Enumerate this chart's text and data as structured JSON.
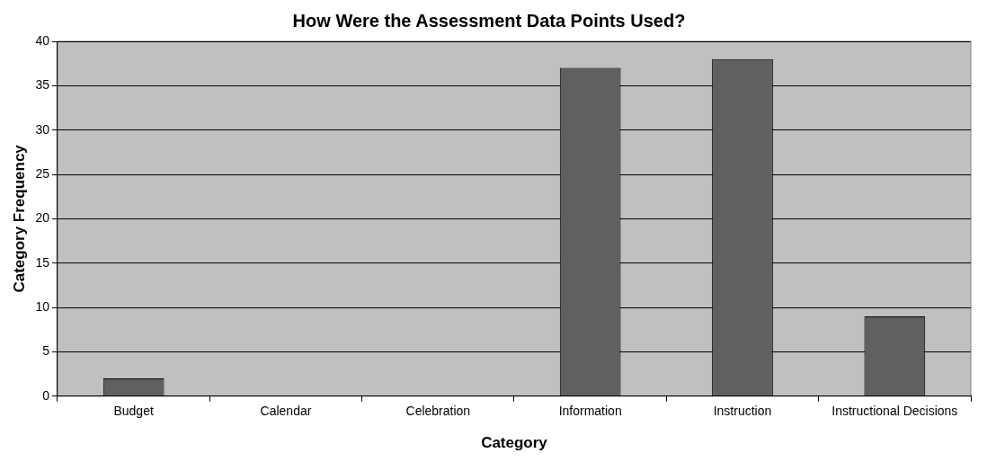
{
  "chart_data": {
    "type": "bar",
    "title": "How Were the Assessment Data Points Used?",
    "xlabel": "Category",
    "ylabel": "Category Frequency",
    "categories": [
      "Budget",
      "Calendar",
      "Celebration",
      "Information",
      "Instruction",
      "Instructional Decisions"
    ],
    "values": [
      2,
      0,
      0,
      37,
      38,
      9
    ],
    "color": "#606060",
    "ylim": [
      0,
      40
    ],
    "yticks": [
      0,
      5,
      10,
      15,
      20,
      25,
      30,
      35,
      40
    ],
    "grid": "y",
    "legend": false
  }
}
